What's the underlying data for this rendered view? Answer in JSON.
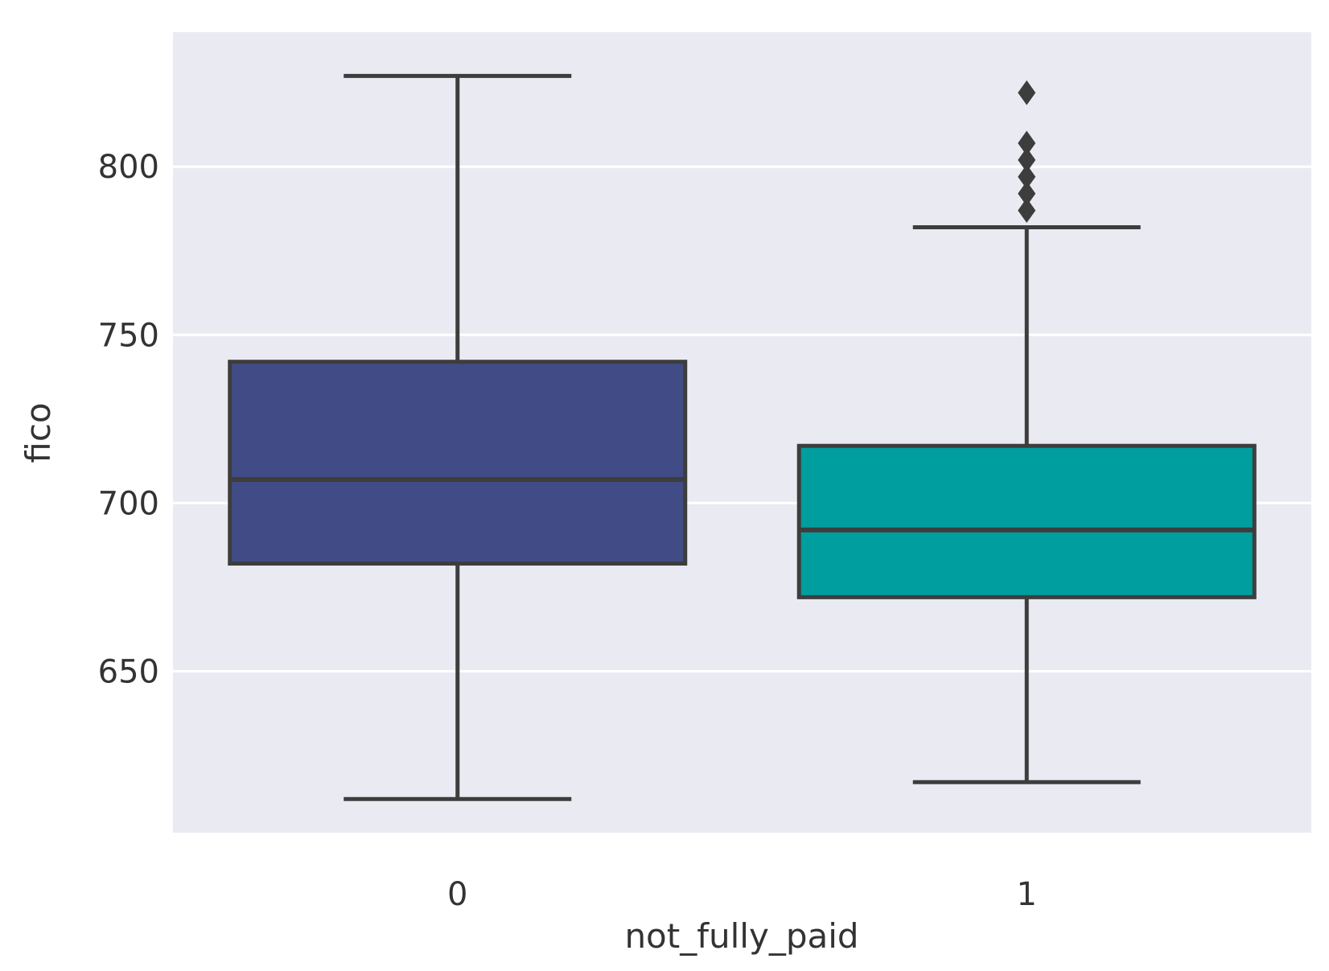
{
  "chart_data": {
    "type": "box",
    "title": "",
    "xlabel": "not_fully_paid",
    "ylabel": "fico",
    "categories": [
      "0",
      "1"
    ],
    "y_ticks": [
      650,
      700,
      750,
      800
    ],
    "ylim": [
      602,
      840
    ],
    "grid": "horizontal",
    "background": "#eaeaf2",
    "boxes": [
      {
        "category": "0",
        "color": "#414c86",
        "whisker_low": 612,
        "q1": 682,
        "median": 707,
        "q3": 742,
        "whisker_high": 827,
        "outliers": []
      },
      {
        "category": "1",
        "color": "#009e9e",
        "whisker_low": 617,
        "q1": 672,
        "median": 692,
        "q3": 717,
        "whisker_high": 782,
        "outliers": [
          787,
          792,
          797,
          802,
          807,
          822
        ]
      }
    ]
  }
}
